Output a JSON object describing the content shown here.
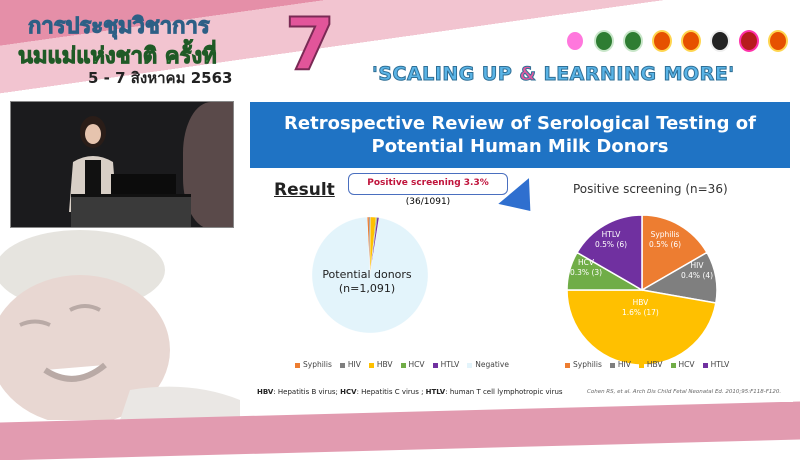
{
  "banner": {
    "line1": "การประชุมวิชาการ",
    "line2": "นมแม่แห่งชาติ ครั้งที่",
    "number": "7",
    "dates": "5 - 7 สิงหาคม 2563",
    "slogan_a": "'SCALING UP ",
    "slogan_amp": "&",
    "slogan_b": " LEARNING MORE'"
  },
  "slide": {
    "title_line1": "Retrospective Review of Serological Testing of",
    "title_line2": "Potential Human Milk Donors",
    "result_label": "Result",
    "callout_bold": "Positive screening 3.3%",
    "callout_rest": " (36/1091)",
    "donor_label": "Potential donors",
    "donor_n": "(n=1,091)",
    "right_title": "Positive screening (n=36)",
    "footnote": {
      "hbv": "HBV",
      "hbv_t": ": Hepatitis B virus; ",
      "hcv": "HCV",
      "hcv_t": ": Hepatitis C virus ; ",
      "htlv": "HTLV",
      "htlv_t": ": human T cell lymphotropic virus"
    },
    "citation": "Cohen RS, et al. Arch Dis Child Fetal Neonatal Ed. 2010;95:F118-F120."
  },
  "chart_data": [
    {
      "type": "pie",
      "title": "",
      "categories": [
        "Syphilis",
        "HIV",
        "HBV",
        "HCV",
        "HTLV",
        "Negative"
      ],
      "values": [
        6,
        4,
        17,
        3,
        6,
        1055
      ],
      "colors": [
        "#ed7d31",
        "#7f7f7f",
        "#ffc000",
        "#70ad47",
        "#7030a0",
        "#e3f4fb"
      ],
      "legend": "bottom"
    },
    {
      "type": "pie",
      "title": "Positive screening (n=36)",
      "categories": [
        "Syphilis",
        "HIV",
        "HBV",
        "HCV",
        "HTLV"
      ],
      "values": [
        6,
        4,
        17,
        3,
        6
      ],
      "data_labels": [
        "0.5% (6)",
        "0.4% (4)",
        "1.6% (17)",
        "0.3% (3)",
        "0.5% (6)"
      ],
      "colors": [
        "#ed7d31",
        "#7f7f7f",
        "#ffc000",
        "#70ad47",
        "#7030a0"
      ],
      "legend": "bottom"
    }
  ]
}
